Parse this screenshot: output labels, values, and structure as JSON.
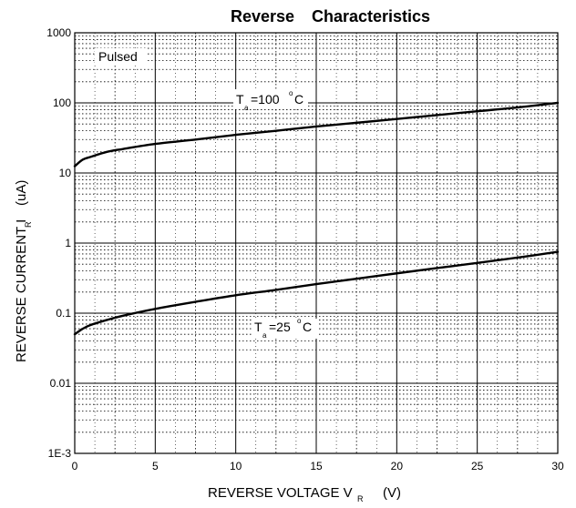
{
  "chart_data": {
    "type": "line",
    "title_part1": "Reverse",
    "title_part2": "Characteristics",
    "xlabel_main": "REVERSE VOLTAGE   V",
    "xlabel_sub": "R",
    "xlabel_unit": "(V)",
    "ylabel_main": "REVERSE CURRENT  I",
    "ylabel_sub": "R",
    "ylabel_unit": "(uA)",
    "x_scale": "linear",
    "y_scale": "log",
    "xlim": [
      0,
      30
    ],
    "ylim": [
      0.001,
      1000
    ],
    "x_ticks": [
      0,
      5,
      10,
      15,
      20,
      25,
      30
    ],
    "x_tick_labels": [
      "0",
      "5",
      "10",
      "15",
      "20",
      "25",
      "30"
    ],
    "y_tick_values": [
      0.001,
      0.01,
      0.1,
      1,
      10,
      100,
      1000
    ],
    "y_tick_labels": [
      "1E-3",
      "0.01",
      "0.1",
      "1",
      "10",
      "100",
      "1000"
    ],
    "grid": true,
    "annotations": {
      "pulsed": "Pulsed",
      "t100_main": "T",
      "t100_sub": "a",
      "t100_rest": "=100",
      "t100_deg": "o",
      "t100_unit": "C",
      "t25_main": "T",
      "t25_sub": "a",
      "t25_rest": "=25",
      "t25_deg": "o",
      "t25_unit": "C"
    },
    "series": [
      {
        "x": [
          0,
          0.5,
          1,
          2,
          3,
          5,
          7.5,
          10,
          12.5,
          15,
          17.5,
          20,
          22.5,
          25,
          27.5,
          30
        ],
        "y": [
          12.5,
          15.5,
          17,
          20,
          22,
          26,
          30,
          35,
          40,
          46,
          52,
          59,
          67,
          76,
          86,
          100
        ]
      },
      {
        "x": [
          0,
          0.5,
          1,
          2,
          3,
          5,
          7.5,
          10,
          12.5,
          15,
          17.5,
          20,
          22.5,
          25,
          27.5,
          30
        ],
        "y": [
          0.05,
          0.06,
          0.068,
          0.08,
          0.092,
          0.115,
          0.145,
          0.18,
          0.215,
          0.26,
          0.31,
          0.37,
          0.44,
          0.52,
          0.62,
          0.75
        ]
      }
    ]
  }
}
